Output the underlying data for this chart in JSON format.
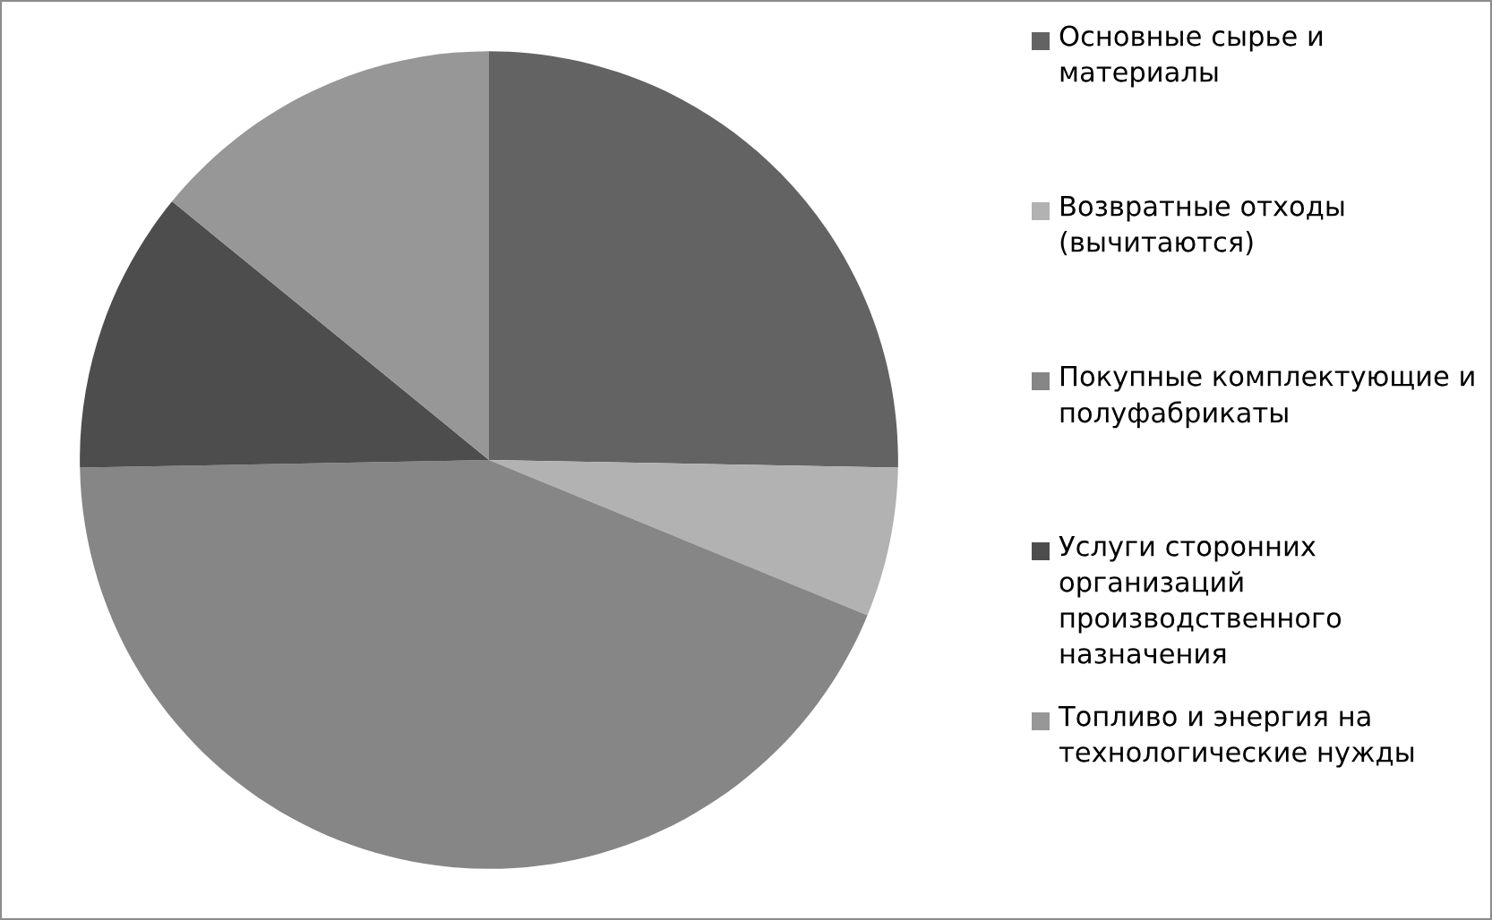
{
  "chart_data": {
    "type": "pie",
    "categories": [
      "Основные сырье и материалы",
      "Возвратные отходы (вычитаются)",
      "Покупные комплектующие и полуфабрикаты",
      "Услуги сторонних организаций производственного назначения",
      "Топливо и энергия на технологические нужды"
    ],
    "values": [
      25.3,
      5.9,
      43.5,
      11.2,
      14.1
    ],
    "colors": [
      "#636363",
      "#b2b2b2",
      "#868686",
      "#4d4d4d",
      "#979797"
    ],
    "legend": "right"
  }
}
